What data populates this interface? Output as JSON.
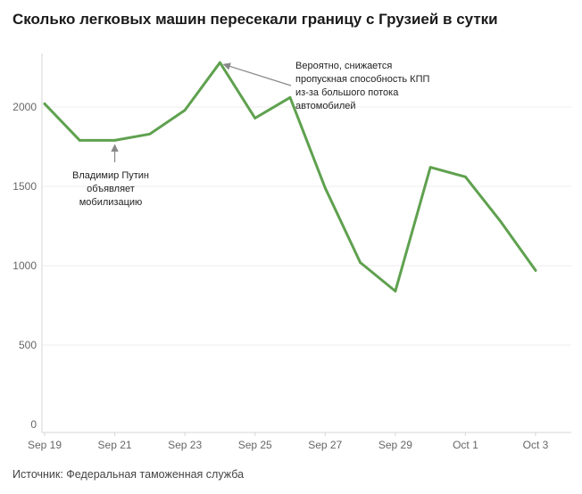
{
  "title": "Сколько легковых машин пересекали границу с Грузией в сутки",
  "source": "Источник: Федеральная таможенная служба",
  "colors": {
    "line": "#5fa14f",
    "grid": "#ececec",
    "axis": "#d5d5d5",
    "arrow": "#888888"
  },
  "chart_data": {
    "type": "line",
    "title": "Сколько легковых машин пересекали границу с Грузией в сутки",
    "x": [
      "2022-09-19",
      "2022-09-20",
      "2022-09-21",
      "2022-09-22",
      "2022-09-23",
      "2022-09-24",
      "2022-09-25",
      "2022-09-26",
      "2022-09-27",
      "2022-09-28",
      "2022-09-29",
      "2022-09-30",
      "2022-10-01",
      "2022-10-02",
      "2022-10-03"
    ],
    "series": [
      {
        "values": [
          2020,
          1790,
          1790,
          1830,
          1980,
          2280,
          1930,
          2060,
          1490,
          1020,
          840,
          1620,
          1560,
          1280,
          970
        ]
      }
    ],
    "xticks": [
      "Sep 19",
      "Sep 21",
      "Sep 23",
      "Sep 25",
      "Sep 27",
      "Sep 29",
      "Oct 1",
      "Oct 3"
    ],
    "yticks": [
      "0",
      "500",
      "1000",
      "1500",
      "2000"
    ],
    "ylim": [
      0,
      2400
    ],
    "grid": true,
    "annotations": [
      {
        "text": [
          "Владимир Путин",
          "объявляет",
          "мобилизацию"
        ],
        "x": "2022-09-21",
        "y": 1790
      },
      {
        "text": [
          "Вероятно, снижается",
          "пропускная способность КПП",
          "из-за большого потока",
          "автомобилей"
        ],
        "x": "2022-09-24",
        "y": 2280
      }
    ]
  }
}
